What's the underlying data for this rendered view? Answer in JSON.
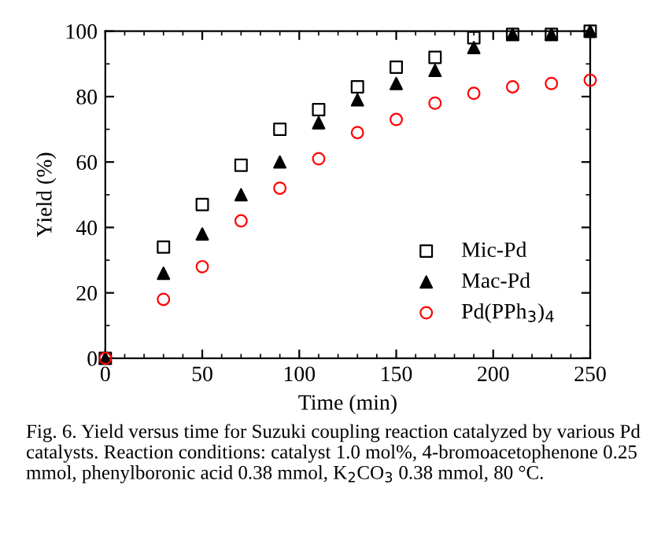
{
  "chart_data": {
    "type": "scatter",
    "xlabel": "Time (min)",
    "ylabel": "Yield (%)",
    "x": [
      0,
      30,
      50,
      70,
      90,
      110,
      130,
      150,
      170,
      190,
      210,
      230,
      250
    ],
    "series": [
      {
        "name": "Mic-Pd",
        "color": "#000000",
        "marker": "square",
        "values": [
          0,
          34,
          47,
          59,
          70,
          76,
          83,
          89,
          92,
          98,
          99,
          99,
          100
        ]
      },
      {
        "name": "Mac-Pd",
        "color": "#000000",
        "marker": "triangle",
        "values": [
          0,
          26,
          38,
          50,
          60,
          72,
          79,
          84,
          88,
          95,
          99,
          99,
          100
        ]
      },
      {
        "name": "Pd(PPh$_{3}$)$_{4}$",
        "color": "#ff0000",
        "marker": "circle",
        "values": [
          0,
          18,
          28,
          42,
          52,
          61,
          69,
          73,
          78,
          81,
          83,
          84,
          85
        ]
      }
    ],
    "xlim": [
      0,
      250
    ],
    "xticks": [
      0,
      50,
      100,
      150,
      200,
      250
    ],
    "ylim": [
      0,
      100
    ],
    "yticks": [
      0,
      20,
      40,
      60,
      80,
      100
    ],
    "grid": false,
    "legend": "bottom right",
    "annotations": [
      "Fig. 6. Yield versus time for Suzuki coupling reaction catalyzed by various Pd catalysts. Reaction conditions: catalyst 1.0 mol%, 4-bromoacetophenone 0.25 mmol, phenylboronic acid 0.38 mmol, K$_{2}$CO$_{3}$ 0.38 mmol, 80 °C."
    ]
  }
}
